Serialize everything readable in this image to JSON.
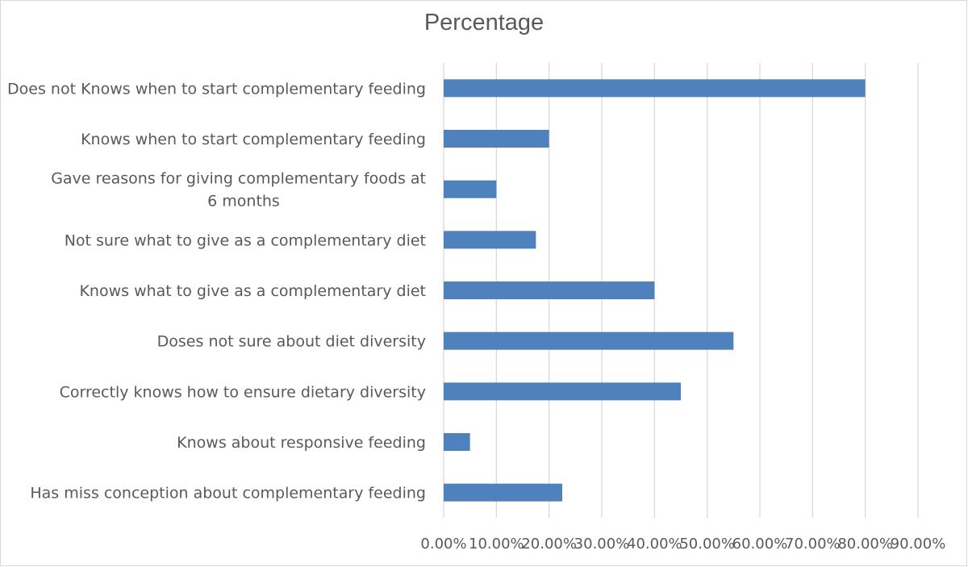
{
  "chart_data": {
    "type": "bar",
    "orientation": "horizontal",
    "title": "Percentage",
    "categories": [
      [
        "Does not Knows when to start complementary feeding"
      ],
      [
        "Knows when to start complementary feeding"
      ],
      [
        "Gave reasons for giving complementary foods at",
        "6 months"
      ],
      [
        "Not sure what to give as a complementary diet"
      ],
      [
        "Knows what to give as a complementary diet"
      ],
      [
        "Doses not sure about diet diversity"
      ],
      [
        "Correctly knows  how to ensure dietary diversity"
      ],
      [
        "Knows about responsive feeding"
      ],
      [
        "Has miss conception about complementary feeding"
      ]
    ],
    "values": [
      0.8,
      0.2,
      0.1,
      0.175,
      0.4,
      0.55,
      0.45,
      0.05,
      0.225
    ],
    "xlim": [
      0,
      0.9
    ],
    "x_ticks": [
      "0.00%",
      "10.00%",
      "20.00%",
      "30.00%",
      "40.00%",
      "50.00%",
      "60.00%",
      "70.00%",
      "80.00%",
      "90.00%"
    ],
    "bar_color": "#4f81bd",
    "grid_color": "#d9d9d9",
    "grid": true,
    "legend": "none"
  }
}
